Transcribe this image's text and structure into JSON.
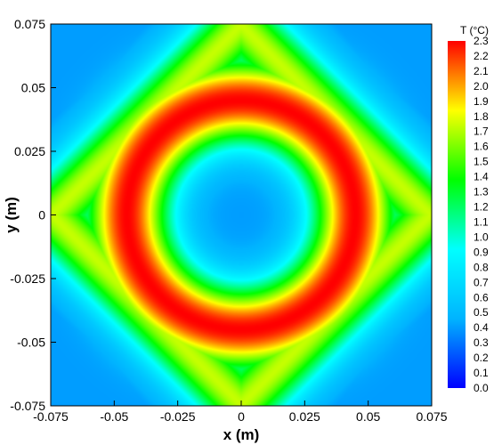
{
  "chart_data": {
    "type": "heatmap",
    "title": "",
    "xlabel": "x (m)",
    "ylabel": "y (m)",
    "xlim": [
      -0.075,
      0.075
    ],
    "ylim": [
      -0.075,
      0.075
    ],
    "x_ticks": [
      "-0.075",
      "-0.05",
      "-0.025",
      "0",
      "0.025",
      "0.05",
      "0.075"
    ],
    "y_ticks": [
      "-0.075",
      "-0.05",
      "-0.025",
      "0",
      "0.025",
      "0.05",
      "0.075"
    ],
    "colorbar": {
      "title": "T (°C)",
      "range": [
        0.0,
        2.3
      ],
      "ticks": [
        "0.0",
        "0.1",
        "0.2",
        "0.3",
        "0.4",
        "0.5",
        "0.6",
        "0.7",
        "0.8",
        "0.9",
        "1.0",
        "1.1",
        "1.2",
        "1.3",
        "1.4",
        "1.5",
        "1.6",
        "1.7",
        "1.8",
        "1.9",
        "2.0",
        "2.1",
        "2.2",
        "2.3"
      ],
      "colormap": [
        "#0000ff",
        "#00b4ff",
        "#00ffff",
        "#00ff00",
        "#ffff00",
        "#ff0000"
      ],
      "placement": "right"
    },
    "field": {
      "description_values": {
        "center": 0.4,
        "ring_peak": 2.3,
        "ring_radius": 0.045,
        "corners": 0.1,
        "edge_midpoints": 0.7
      }
    }
  }
}
